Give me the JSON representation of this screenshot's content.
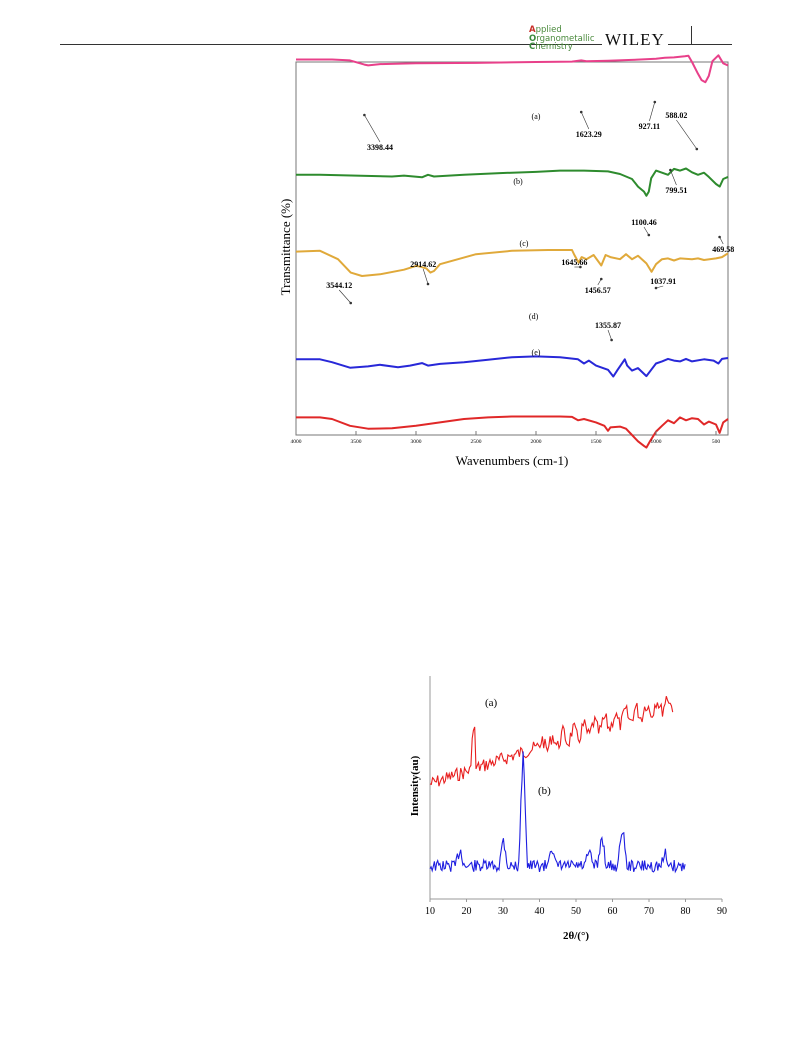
{
  "header": {
    "journal_lines": [
      {
        "first": "A",
        "rest": "pplied"
      },
      {
        "first": "O",
        "rest": "rganometallic"
      },
      {
        "first": "C",
        "rest": "hemistry"
      }
    ],
    "publisher": "WILEY"
  },
  "figures": [
    {
      "chart_data": {
        "type": "line",
        "xlabel": "Wavenumbers (cm-1)",
        "ylabel": "Transmittance (%)",
        "xlim": [
          4000,
          400
        ],
        "x_ticks": [
          "4000",
          "3500",
          "3000",
          "2500",
          "2000",
          "1500",
          "1000",
          "500"
        ],
        "series": [
          {
            "name": "(a)",
            "color": "#e8408a",
            "points": [
              [
                4000,
                6
              ],
              [
                3700,
                6
              ],
              [
                3550,
                8
              ],
              [
                3430,
                18
              ],
              [
                3398,
                20
              ],
              [
                3300,
                17
              ],
              [
                3000,
                15
              ],
              [
                2500,
                14
              ],
              [
                2000,
                12
              ],
              [
                1700,
                11
              ],
              [
                1623,
                8
              ],
              [
                1580,
                10
              ],
              [
                1400,
                9
              ],
              [
                1200,
                7
              ],
              [
                1000,
                4
              ],
              [
                927,
                2
              ],
              [
                850,
                1
              ],
              [
                760,
                -2
              ],
              [
                730,
                -3
              ],
              [
                700,
                12
              ],
              [
                650,
                40
              ],
              [
                620,
                55
              ],
              [
                588,
                60
              ],
              [
                560,
                45
              ],
              [
                530,
                10
              ],
              [
                480,
                -4
              ],
              [
                440,
                15
              ],
              [
                400,
                20
              ]
            ]
          },
          {
            "name": "(b)",
            "color": "#2e8b2e",
            "points": [
              [
                4000,
                90
              ],
              [
                3800,
                90
              ],
              [
                3500,
                92
              ],
              [
                3200,
                94
              ],
              [
                3100,
                92
              ],
              [
                2950,
                96
              ],
              [
                2900,
                90
              ],
              [
                2850,
                94
              ],
              [
                2600,
                90
              ],
              [
                2300,
                86
              ],
              [
                2000,
                83
              ],
              [
                1800,
                80
              ],
              [
                1600,
                80
              ],
              [
                1400,
                82
              ],
              [
                1300,
                88
              ],
              [
                1200,
                100
              ],
              [
                1150,
                118
              ],
              [
                1100,
                130
              ],
              [
                1080,
                140
              ],
              [
                1060,
                130
              ],
              [
                1040,
                98
              ],
              [
                1000,
                80
              ],
              [
                950,
                85
              ],
              [
                900,
                90
              ],
              [
                850,
                76
              ],
              [
                799,
                80
              ],
              [
                750,
                75
              ],
              [
                700,
                84
              ],
              [
                650,
                90
              ],
              [
                600,
                85
              ],
              [
                560,
                95
              ],
              [
                500,
                112
              ],
              [
                469,
                118
              ],
              [
                440,
                100
              ],
              [
                400,
                95
              ]
            ]
          },
          {
            "name": "(c)",
            "color": "#e0a93a",
            "points": [
              [
                4000,
                142
              ],
              [
                3800,
                140
              ],
              [
                3650,
                160
              ],
              [
                3544,
                192
              ],
              [
                3450,
                200
              ],
              [
                3300,
                196
              ],
              [
                3100,
                185
              ],
              [
                3000,
                176
              ],
              [
                2960,
                178
              ],
              [
                2914,
                182
              ],
              [
                2880,
                192
              ],
              [
                2850,
                188
              ],
              [
                2800,
                172
              ],
              [
                2500,
                148
              ],
              [
                2200,
                140
              ],
              [
                1900,
                138
              ],
              [
                1700,
                138
              ],
              [
                1680,
                150
              ],
              [
                1645,
                168
              ],
              [
                1620,
                155
              ],
              [
                1580,
                160
              ],
              [
                1520,
                150
              ],
              [
                1456,
                175
              ],
              [
                1420,
                150
              ],
              [
                1380,
                155
              ],
              [
                1300,
                160
              ],
              [
                1250,
                148
              ],
              [
                1200,
                160
              ],
              [
                1150,
                152
              ],
              [
                1080,
                170
              ],
              [
                1037,
                190
              ],
              [
                1000,
                172
              ],
              [
                950,
                160
              ],
              [
                900,
                158
              ],
              [
                850,
                163
              ],
              [
                800,
                158
              ],
              [
                700,
                160
              ],
              [
                650,
                158
              ],
              [
                600,
                162
              ],
              [
                500,
                158
              ],
              [
                450,
                155
              ],
              [
                400,
                146
              ]
            ]
          },
          {
            "name": "(d)",
            "color": "#2828d8",
            "points": [
              [
                4000,
                215
              ],
              [
                3800,
                215
              ],
              [
                3700,
                222
              ],
              [
                3550,
                235
              ],
              [
                3400,
                232
              ],
              [
                3300,
                228
              ],
              [
                3150,
                234
              ],
              [
                3050,
                230
              ],
              [
                2950,
                224
              ],
              [
                2900,
                230
              ],
              [
                2800,
                226
              ],
              [
                2600,
                222
              ],
              [
                2400,
                216
              ],
              [
                2200,
                210
              ],
              [
                2000,
                208
              ],
              [
                1800,
                210
              ],
              [
                1650,
                215
              ],
              [
                1600,
                225
              ],
              [
                1560,
                218
              ],
              [
                1500,
                230
              ],
              [
                1400,
                240
              ],
              [
                1356,
                256
              ],
              [
                1320,
                240
              ],
              [
                1260,
                215
              ],
              [
                1240,
                230
              ],
              [
                1200,
                242
              ],
              [
                1150,
                236
              ],
              [
                1080,
                255
              ],
              [
                1040,
                240
              ],
              [
                1000,
                225
              ],
              [
                950,
                220
              ],
              [
                900,
                214
              ],
              [
                850,
                218
              ],
              [
                800,
                220
              ],
              [
                750,
                214
              ],
              [
                700,
                220
              ],
              [
                600,
                215
              ],
              [
                520,
                218
              ],
              [
                480,
                225
              ],
              [
                450,
                214
              ],
              [
                400,
                212
              ]
            ]
          },
          {
            "name": "(e)",
            "color": "#e02828",
            "points": [
              [
                4000,
                258
              ],
              [
                3800,
                258
              ],
              [
                3700,
                262
              ],
              [
                3550,
                278
              ],
              [
                3400,
                285
              ],
              [
                3200,
                284
              ],
              [
                3000,
                278
              ],
              [
                2800,
                270
              ],
              [
                2600,
                262
              ],
              [
                2400,
                258
              ],
              [
                2200,
                256
              ],
              [
                2000,
                256
              ],
              [
                1800,
                256
              ],
              [
                1700,
                257
              ],
              [
                1650,
                265
              ],
              [
                1600,
                262
              ],
              [
                1500,
                270
              ],
              [
                1430,
                278
              ],
              [
                1400,
                290
              ],
              [
                1380,
                282
              ],
              [
                1300,
                280
              ],
              [
                1250,
                285
              ],
              [
                1200,
                300
              ],
              [
                1150,
                315
              ],
              [
                1100,
                326
              ],
              [
                1080,
                330
              ],
              [
                1050,
                315
              ],
              [
                1000,
                292
              ],
              [
                950,
                278
              ],
              [
                900,
                265
              ],
              [
                850,
                272
              ],
              [
                800,
                258
              ],
              [
                750,
                265
              ],
              [
                700,
                260
              ],
              [
                650,
                262
              ],
              [
                600,
                275
              ],
              [
                560,
                268
              ],
              [
                500,
                275
              ],
              [
                470,
                295
              ],
              [
                440,
                270
              ],
              [
                400,
                262
              ]
            ]
          }
        ],
        "annotations": [
          "3398.44",
          "1623.29",
          "927.11",
          "588.02",
          "799.51",
          "1100.46",
          "469.58",
          "2914.62",
          "1645.66",
          "1456.57",
          "1037.91",
          "3544.12",
          "1355.87"
        ]
      }
    },
    {
      "chart_data": {
        "type": "line",
        "xlabel": "2θ/(°)",
        "ylabel": "Intensity(au)",
        "xlim": [
          10,
          90
        ],
        "x_ticks": [
          "10",
          "20",
          "30",
          "40",
          "50",
          "60",
          "70",
          "80",
          "90"
        ],
        "series": [
          {
            "name": "(a)",
            "color": "#e81e1e"
          },
          {
            "name": "(b)",
            "color": "#1e1ee0"
          }
        ]
      }
    }
  ]
}
